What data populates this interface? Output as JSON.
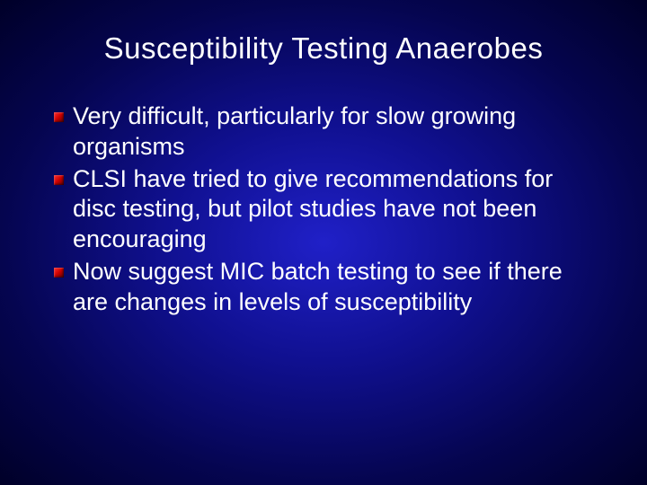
{
  "slide": {
    "title": "Susceptibility Testing Anaerobes",
    "bullets": [
      {
        "text": "Very difficult, particularly for slow growing organisms"
      },
      {
        "text": "CLSI have tried to give recommendations for disc testing, but pilot studies have not been encouraging"
      },
      {
        "text": "Now suggest MIC batch testing to see if there are changes in levels of susceptibility"
      }
    ],
    "style": {
      "title_fontsize": 33,
      "body_fontsize": 27,
      "title_color": "#ffffff",
      "body_color": "#ffffff",
      "bullet_color_start": "#ff3030",
      "bullet_color_end": "#5a0000",
      "background_center": "#2020c8",
      "background_edge": "#000028",
      "font_family": "Arial"
    }
  }
}
